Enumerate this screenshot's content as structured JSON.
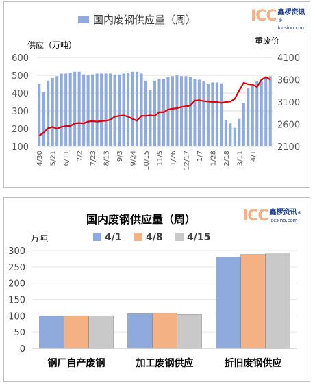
{
  "logo": {
    "mark": "ICC",
    "name": "鑫椤资讯",
    "url": "iccsino.com",
    "reg": "®"
  },
  "chart_data": [
    {
      "type": "bar+line",
      "title": "国内废钢供应量（周）",
      "legend": [
        "国内废钢供应量（周）"
      ],
      "ylabel_left": "供应（万吨）",
      "ylabel_right": "重废价",
      "ylim_left": [
        100,
        600
      ],
      "yticks_left": [
        100,
        200,
        300,
        400,
        500,
        600
      ],
      "ylim_right": [
        2100,
        4100
      ],
      "yticks_right": [
        2100,
        2600,
        3100,
        3600,
        4100
      ],
      "xtick_labels": [
        "4/30",
        "5/21",
        "6/11",
        "7/2",
        "7/23",
        "8/13",
        "9/3",
        "9/24",
        "10/15",
        "11/5",
        "11/26",
        "12/17",
        "1/7",
        "1/28",
        "2/18",
        "3/11",
        "4/1"
      ],
      "series": [
        {
          "name": "国内废钢供应量（周）",
          "type": "bar",
          "color": "#8faadc",
          "values": [
            450,
            405,
            470,
            485,
            495,
            510,
            510,
            515,
            520,
            520,
            505,
            500,
            505,
            510,
            510,
            510,
            510,
            505,
            505,
            510,
            515,
            520,
            520,
            510,
            470,
            415,
            470,
            480,
            480,
            490,
            495,
            500,
            495,
            495,
            490,
            480,
            475,
            465,
            450,
            460,
            460,
            455,
            250,
            230,
            205,
            255,
            345,
            430,
            440,
            465,
            470,
            490,
            495
          ]
        },
        {
          "name": "重废价",
          "type": "line",
          "color": "#e00000",
          "values": [
            2340,
            2410,
            2510,
            2540,
            2500,
            2540,
            2560,
            2560,
            2620,
            2630,
            2620,
            2660,
            2670,
            2660,
            2670,
            2680,
            2700,
            2770,
            2790,
            2800,
            2770,
            2720,
            2680,
            2790,
            2790,
            2800,
            2790,
            2870,
            2870,
            2930,
            2950,
            2960,
            2990,
            3000,
            3020,
            3130,
            3140,
            3120,
            3110,
            3100,
            3100,
            3080,
            3100,
            3110,
            3170,
            3360,
            3530,
            3500,
            3490,
            3440,
            3600,
            3660,
            3600
          ]
        }
      ]
    },
    {
      "type": "bar",
      "title": "国内废钢供应量（周）",
      "ylabel": "万吨",
      "ylim": [
        0,
        300
      ],
      "yticks": [
        0,
        50,
        100,
        150,
        200,
        250,
        300
      ],
      "categories": [
        "钢厂自产废钢",
        "加工废钢供应",
        "折旧废钢供应"
      ],
      "series": [
        {
          "name": "4/1",
          "color": "#8faadc",
          "values": [
            100,
            106,
            280
          ]
        },
        {
          "name": "4/8",
          "color": "#f4b183",
          "values": [
            100,
            108,
            288
          ]
        },
        {
          "name": "4/15",
          "color": "#c9c9c9",
          "values": [
            100,
            104,
            293
          ]
        }
      ]
    }
  ]
}
